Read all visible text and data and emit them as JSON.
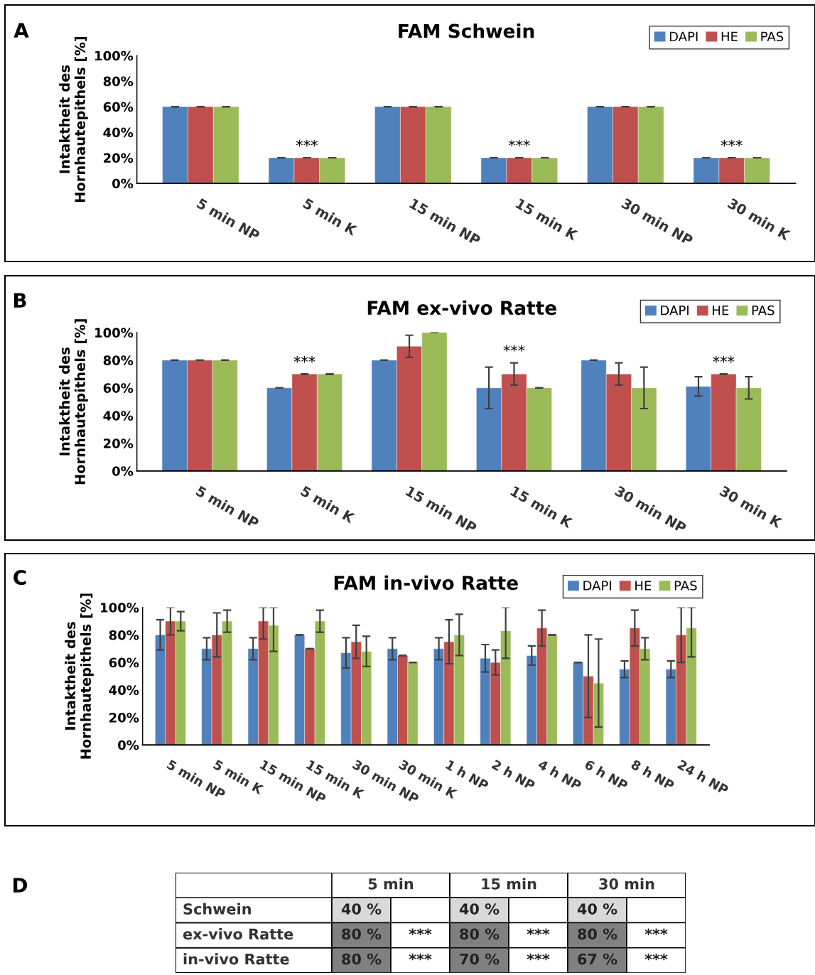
{
  "chart_data": [
    {
      "type": "bar",
      "title": "FAM Schwein",
      "ylabel": "Intaktheit des\nHornhautepithels [%]",
      "annotations": [
        "A",
        {
          "text": "***",
          "x": "5 min K",
          "y": 20
        },
        {
          "text": "***",
          "x": "15 min K",
          "y": 20
        },
        {
          "text": "***",
          "x": "30 min K",
          "y": 20
        }
      ],
      "categories": [
        "5 min NP",
        "5 min K",
        "15 min NP",
        "15 min K",
        "30 min NP",
        "30 min K"
      ],
      "series": [
        {
          "name": "DAPI",
          "color": "#4f81bd",
          "values": [
            60,
            20,
            60,
            20,
            60,
            20
          ],
          "errors": [
            0,
            0,
            0,
            0,
            0,
            0
          ]
        },
        {
          "name": "HE",
          "color": "#c0504d",
          "values": [
            60,
            20,
            60,
            20,
            60,
            20
          ],
          "errors": [
            0,
            0,
            0,
            0,
            0,
            0
          ]
        },
        {
          "name": "PAS",
          "color": "#9bbb59",
          "values": [
            60,
            20,
            60,
            20,
            60,
            20
          ],
          "errors": [
            0,
            0,
            0,
            0,
            0,
            0
          ]
        }
      ],
      "ylim": [
        0,
        100
      ],
      "yticks": [
        {
          "value": 0,
          "label": "0%"
        },
        {
          "value": 20,
          "label": "20%"
        },
        {
          "value": 40,
          "label": "40%"
        },
        {
          "value": 60,
          "label": "60%"
        },
        {
          "value": 80,
          "label": "80%"
        },
        {
          "value": 100,
          "label": "100%"
        }
      ],
      "grid": false,
      "legend": "top right"
    },
    {
      "type": "bar",
      "title": "FAM ex-vivo Ratte",
      "ylabel": "Intaktheit des\nHornhautepithels [%]",
      "annotations": [
        "B",
        {
          "text": "***",
          "x": "5 min K",
          "y": 70
        },
        {
          "text": "***",
          "x": "15 min K",
          "y": 78
        },
        {
          "text": "***",
          "x": "30 min K",
          "y": 70
        }
      ],
      "categories": [
        "5 min NP",
        "5 min K",
        "15 min NP",
        "15 min K",
        "30 min NP",
        "30 min K"
      ],
      "series": [
        {
          "name": "DAPI",
          "color": "#4f81bd",
          "values": [
            80,
            60,
            80,
            60,
            80,
            61
          ],
          "errors": [
            0,
            0,
            0,
            15,
            0,
            7
          ]
        },
        {
          "name": "HE",
          "color": "#c0504d",
          "values": [
            80,
            70,
            90,
            70,
            70,
            70
          ],
          "errors": [
            0,
            0,
            8,
            8,
            8,
            0
          ]
        },
        {
          "name": "PAS",
          "color": "#9bbb59",
          "values": [
            80,
            70,
            100,
            60,
            60,
            60
          ],
          "errors": [
            0,
            0,
            0,
            0,
            15,
            8
          ]
        }
      ],
      "ylim": [
        0,
        100
      ],
      "yticks": [
        {
          "value": 0,
          "label": "0%"
        },
        {
          "value": 20,
          "label": "20%"
        },
        {
          "value": 40,
          "label": "40%"
        },
        {
          "value": 60,
          "label": "60%"
        },
        {
          "value": 80,
          "label": "80%"
        },
        {
          "value": 100,
          "label": "100%"
        }
      ],
      "grid": false,
      "legend": "top right"
    },
    {
      "type": "bar",
      "title": "FAM in-vivo Ratte",
      "ylabel": "Intaktheit des\nHornhautepithels [%]",
      "annotations": [
        "C"
      ],
      "categories": [
        "5 min NP",
        "5 min K",
        "15 min NP",
        "15 min K",
        "30 min NP",
        "30 min K",
        "1 h NP",
        "2 h NP",
        "4 h NP",
        "6 h NP",
        "8 h NP",
        "24 h NP"
      ],
      "series": [
        {
          "name": "DAPI",
          "color": "#4f81bd",
          "values": [
            80,
            70,
            70,
            80,
            67,
            70,
            70,
            63,
            65,
            60,
            55,
            55
          ],
          "errors": [
            11,
            8,
            8,
            0,
            11,
            8,
            8,
            10,
            7,
            0,
            6,
            6
          ]
        },
        {
          "name": "HE",
          "color": "#c0504d",
          "values": [
            90,
            80,
            90,
            70,
            75,
            65,
            75,
            60,
            85,
            50,
            85,
            80
          ],
          "errors": [
            10,
            16,
            [
              77,
              100
            ],
            0,
            12,
            0,
            16,
            9,
            13,
            30,
            13,
            20
          ]
        },
        {
          "name": "PAS",
          "color": "#9bbb59",
          "values": [
            90,
            90,
            87,
            90,
            68,
            60,
            80,
            83,
            80,
            45,
            70,
            85
          ],
          "errors": [
            7,
            8,
            [
              68,
              100
            ],
            8,
            11,
            0,
            15,
            [
              63,
              100
            ],
            0,
            32,
            8,
            [
              64,
              100
            ]
          ]
        }
      ],
      "ylim": [
        0,
        100
      ],
      "yticks": [
        {
          "value": 0,
          "label": "0%"
        },
        {
          "value": 20,
          "label": "20%"
        },
        {
          "value": 40,
          "label": "40%"
        },
        {
          "value": 60,
          "label": "60%"
        },
        {
          "value": 80,
          "label": "80%"
        },
        {
          "value": 100,
          "label": "100%"
        }
      ],
      "grid": false,
      "legend": "top right"
    },
    {
      "type": "other",
      "annotations": [
        "D"
      ],
      "categories": [
        "5 min",
        "15 min",
        "30 min"
      ],
      "y_categories": [
        "Schwein",
        "ex-vivo Ratte",
        "in-vivo Ratte"
      ],
      "cell_labels": [
        [
          "40 %",
          null,
          "40 %",
          null,
          "40 %",
          null
        ],
        [
          "80 %",
          "***",
          "80 %",
          "***",
          "80 %",
          "***"
        ],
        [
          "80 %",
          "***",
          "70 %",
          "***",
          "67 %",
          "***"
        ]
      ],
      "colors": [
        "#d9d9d9",
        "#808080",
        "#808080"
      ]
    }
  ]
}
